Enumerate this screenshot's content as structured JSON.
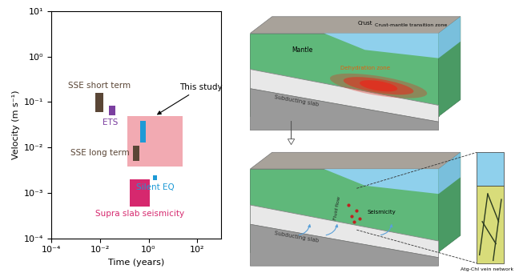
{
  "chart_data": {
    "type": "range",
    "xlabel": "Time (years)",
    "ylabel": "Velocity (m s⁻¹)",
    "log": true,
    "xlim": [
      0.0001,
      1000
    ],
    "ylim": [
      0.0001,
      10
    ],
    "xticks": [
      {
        "value": 0.0001,
        "label": "10⁻⁴"
      },
      {
        "value": 0.01,
        "label": "10⁻²"
      },
      {
        "value": 1,
        "label": "10⁰"
      },
      {
        "value": 100,
        "label": "10²"
      }
    ],
    "yticks": [
      {
        "value": 0.0001,
        "label": "10⁻⁴"
      },
      {
        "value": 0.001,
        "label": "10⁻³"
      },
      {
        "value": 0.01,
        "label": "10⁻²"
      },
      {
        "value": 0.1,
        "label": "10⁻¹"
      },
      {
        "value": 1,
        "label": "10⁰"
      },
      {
        "value": 10,
        "label": "10¹"
      }
    ],
    "regions": [
      {
        "name": "This study",
        "color": "#f2aab2",
        "x": [
          0.13,
          25
        ],
        "y": [
          0.0038,
          0.049
        ]
      },
      {
        "name": "SSE short term",
        "color": "#5a4636",
        "x": [
          0.0065,
          0.014
        ],
        "y": [
          0.06,
          0.16
        ]
      },
      {
        "name": "ETS",
        "color": "#7b3fa0",
        "x": [
          0.023,
          0.043
        ],
        "y": [
          0.051,
          0.083
        ]
      },
      {
        "name": null,
        "color": "#1e9ad6",
        "x": [
          0.46,
          0.77
        ],
        "y": [
          0.0126,
          0.038
        ]
      },
      {
        "name": "SSE long term",
        "color": "#5a4636",
        "x": [
          0.23,
          0.43
        ],
        "y": [
          0.005,
          0.011
        ]
      },
      {
        "name": "Silent EQ",
        "color": "#1e9ad6",
        "x": [
          1.5,
          2.2
        ],
        "y": [
          0.0019,
          0.0024
        ]
      },
      {
        "name": "Supra slab seismicity",
        "color": "#d6286e",
        "x": [
          0.17,
          1.1
        ],
        "y": [
          0.0005,
          0.002
        ]
      }
    ]
  },
  "diagram": {
    "labels": {
      "crust": "Crust",
      "transition": "Crust-mantle transition zone",
      "mantle": "Mantle",
      "dehydration": "Dehydration zone",
      "slab": "Subducting slab",
      "seismicity": "Seismicity",
      "fluid": "Fluid flow",
      "vein": "Atg-Chl vein network"
    }
  }
}
